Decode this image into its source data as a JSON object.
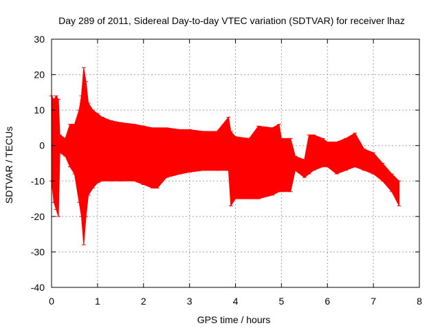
{
  "chart_data": {
    "type": "area",
    "title": "Day 289 of 2011, Sidereal Day-to-day VTEC variation (SDTVAR) for receiver lhaz",
    "xlabel": "GPS time / hours",
    "ylabel": "SDTVAR / TECUs",
    "xlim": [
      0,
      8
    ],
    "ylim": [
      -40,
      30
    ],
    "x_ticks": [
      0,
      1,
      2,
      3,
      4,
      5,
      6,
      7,
      8
    ],
    "y_ticks": [
      30,
      20,
      10,
      0,
      -10,
      -20,
      -30,
      -40
    ],
    "grid": true,
    "series": [
      {
        "name": "SDTVAR error bars",
        "color": "#ff0000",
        "x": [
          0.0,
          0.05,
          0.1,
          0.15,
          0.18,
          0.3,
          0.4,
          0.5,
          0.6,
          0.65,
          0.7,
          0.75,
          0.8,
          0.9,
          1.0,
          1.1,
          1.3,
          1.5,
          1.8,
          2.0,
          2.2,
          2.3,
          2.5,
          2.8,
          3.0,
          3.3,
          3.6,
          3.85,
          3.9,
          4.0,
          4.3,
          4.5,
          4.8,
          4.95,
          5.0,
          5.2,
          5.3,
          5.5,
          5.6,
          5.7,
          5.9,
          6.0,
          6.2,
          6.4,
          6.6,
          6.8,
          7.0,
          7.2,
          7.4,
          7.56
        ],
        "upper": [
          14,
          13,
          14,
          13,
          3,
          2,
          6,
          6,
          10,
          14,
          22,
          18,
          12,
          10,
          9,
          8,
          7,
          6.5,
          6,
          5.5,
          5,
          5,
          5,
          4.5,
          4.5,
          4,
          4,
          8,
          4,
          2.5,
          2,
          5.5,
          5,
          6,
          2,
          2,
          -3,
          -4,
          3,
          3,
          2,
          1,
          1,
          2,
          3.5,
          -1,
          -2,
          -5,
          -8,
          -10
        ],
        "lower": [
          -10,
          -16,
          -18,
          -20,
          -2,
          -3,
          -6,
          -8,
          -16,
          -20,
          -28,
          -20,
          -14,
          -12,
          -10.5,
          -10,
          -10,
          -10,
          -10,
          -11,
          -12,
          -12,
          -9,
          -8,
          -7.5,
          -7,
          -7,
          -7,
          -17,
          -15,
          -15,
          -15,
          -14,
          -13,
          -13,
          -13,
          -7,
          -9,
          -8,
          -7,
          -6,
          -6,
          -8,
          -7,
          -6,
          -7,
          -8,
          -10,
          -13,
          -17
        ]
      }
    ]
  }
}
